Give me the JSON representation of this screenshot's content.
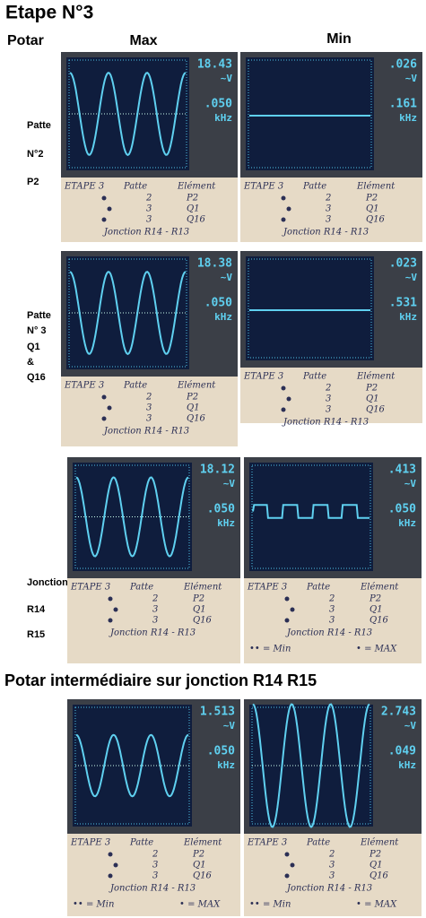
{
  "header": {
    "title": "Etape N°3",
    "col_label": "Potar",
    "columns": [
      "Max",
      "Min"
    ]
  },
  "rows": [
    {
      "label": [
        "Patte",
        "N°2",
        "P2"
      ],
      "cells": [
        {
          "voltage": "18.43",
          "voltage_unit": "~V",
          "frequency": ".050",
          "frequency_unit": "kHz",
          "note": {
            "heading": [
              "ETAPE 3",
              "Patte",
              "Elément"
            ],
            "lines": [
              [
                "2",
                "P2"
              ],
              [
                "3",
                "Q1"
              ],
              [
                "3",
                "Q16"
              ]
            ],
            "footer": "Jonction R14 - R13"
          }
        },
        {
          "voltage": ".026",
          "voltage_unit": "~V",
          "frequency": ".161",
          "frequency_unit": "kHz",
          "note": {
            "heading": [
              "ETAPE 3",
              "Patte",
              "Elément"
            ],
            "lines": [
              [
                "2",
                "P2"
              ],
              [
                "3",
                "Q1"
              ],
              [
                "3",
                "Q16"
              ]
            ],
            "footer": "Jonction R14 - R13"
          }
        }
      ]
    },
    {
      "label": [
        "Patte",
        "N° 3",
        "Q1",
        "&",
        "Q16"
      ],
      "cells": [
        {
          "voltage": "18.38",
          "voltage_unit": "~V",
          "frequency": ".050",
          "frequency_unit": "kHz",
          "note": {
            "heading": [
              "ETAPE 3",
              "Patte",
              "Elément"
            ],
            "lines": [
              [
                "2",
                "P2"
              ],
              [
                "3",
                "Q1"
              ],
              [
                "3",
                "Q16"
              ]
            ],
            "footer": "Jonction R14 - R13"
          }
        },
        {
          "voltage": ".023",
          "voltage_unit": "~V",
          "frequency": ".531",
          "frequency_unit": "kHz",
          "note": {
            "heading": [
              "ETAPE 3",
              "Patte",
              "Elément"
            ],
            "lines": [
              [
                "2",
                "P2"
              ],
              [
                "3",
                "Q1"
              ],
              [
                "3",
                "Q16"
              ]
            ],
            "footer": "Jonction R14 - R13"
          }
        }
      ]
    },
    {
      "label": [
        "Jonction",
        "R14",
        "R15"
      ],
      "cells": [
        {
          "voltage": "18.12",
          "voltage_unit": "~V",
          "frequency": ".050",
          "frequency_unit": "kHz",
          "note": {
            "heading": [
              "ETAPE 3",
              "Patte",
              "Elément"
            ],
            "lines": [
              [
                "2",
                "P2"
              ],
              [
                "3",
                "Q1"
              ],
              [
                "3",
                "Q16"
              ]
            ],
            "footer": "Jonction R14 - R13"
          }
        },
        {
          "voltage": ".413",
          "voltage_unit": "~V",
          "frequency": ".050",
          "frequency_unit": "kHz",
          "note": {
            "heading": [
              "ETAPE 3",
              "Patte",
              "Elément"
            ],
            "lines": [
              [
                "2",
                "P2"
              ],
              [
                "3",
                "Q1"
              ],
              [
                "3",
                "Q16"
              ]
            ],
            "footer": "Jonction R14 - R13",
            "legend": [
              "•• = Min",
              "• = MAX"
            ]
          }
        }
      ]
    }
  ],
  "bottom": {
    "title": "Potar intermédiaire sur jonction R14 R15",
    "cells": [
      {
        "voltage": "1.513",
        "voltage_unit": "~V",
        "frequency": ".050",
        "frequency_unit": "kHz",
        "note": {
          "heading": [
            "ETAPE 3",
            "Patte",
            "Elément"
          ],
          "lines": [
            [
              "2",
              "P2"
            ],
            [
              "3",
              "Q1"
            ],
            [
              "3",
              "Q16"
            ]
          ],
          "footer": "Jonction R14 - R13",
          "legend": [
            "•• = Min",
            "• = MAX"
          ]
        }
      },
      {
        "voltage": "2.743",
        "voltage_unit": "~V",
        "frequency": ".049",
        "frequency_unit": "kHz",
        "note": {
          "heading": [
            "ETAPE 3",
            "Patte",
            "Elément"
          ],
          "lines": [
            [
              "2",
              "P2"
            ],
            [
              "3",
              "Q1"
            ],
            [
              "3",
              "Q16"
            ]
          ],
          "footer": "Jonction R14 - R13",
          "legend": [
            "•• = Min",
            "• = MAX"
          ]
        }
      }
    ]
  }
}
